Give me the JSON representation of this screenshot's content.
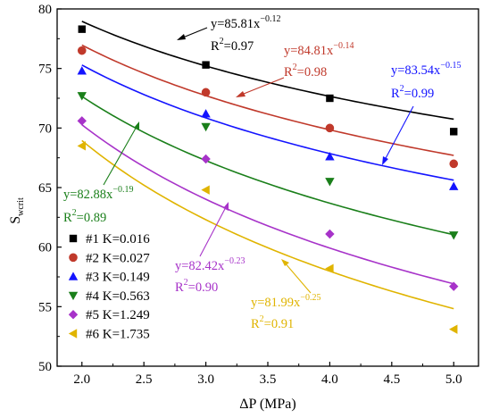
{
  "chart_data": {
    "type": "scatter",
    "xlabel": "ΔP (MPa)",
    "ylabel_main": "S",
    "ylabel_sub": "wcrit",
    "xlim": [
      1.8,
      5.2
    ],
    "ylim": [
      50,
      80
    ],
    "xticks": [
      2.0,
      2.5,
      3.0,
      3.5,
      4.0,
      4.5,
      5.0
    ],
    "xtick_labels": [
      "2.0",
      "2.5",
      "3.0",
      "3.5",
      "4.0",
      "4.5",
      "5.0"
    ],
    "yticks": [
      50,
      55,
      60,
      65,
      70,
      75,
      80
    ],
    "ytick_labels": [
      "50",
      "55",
      "60",
      "65",
      "70",
      "75",
      "80"
    ],
    "grid": false,
    "legend_position": "bottom-left",
    "series": [
      {
        "name": "#1 K=0.016",
        "marker": "square",
        "color": "#000000",
        "x": [
          2,
          3,
          4,
          5
        ],
        "y": [
          78.3,
          75.3,
          72.5,
          69.7
        ],
        "fit": {
          "a": 85.81,
          "b": -0.12
        },
        "eq_base": "y=85.81x",
        "eq_exp": "−0.12",
        "r2_base": "R",
        "r2_exp": "2",
        "r2_val": "=0.97"
      },
      {
        "name": "#2 K=0.027",
        "marker": "circle",
        "color": "#c0392b",
        "x": [
          2,
          3,
          4,
          5
        ],
        "y": [
          76.5,
          73.0,
          70.0,
          67.0
        ],
        "fit": {
          "a": 84.81,
          "b": -0.14
        },
        "eq_base": "y=84.81x",
        "eq_exp": "−0.14",
        "r2_base": "R",
        "r2_exp": "2",
        "r2_val": "=0.98"
      },
      {
        "name": "#3 K=0.149",
        "marker": "triangle-up",
        "color": "#1414ff",
        "x": [
          2,
          3,
          4,
          5
        ],
        "y": [
          74.8,
          71.2,
          67.6,
          65.1
        ],
        "fit": {
          "a": 83.54,
          "b": -0.15
        },
        "eq_base": "y=83.54x",
        "eq_exp": "−0.15",
        "r2_base": "R",
        "r2_exp": "2",
        "r2_val": "=0.99"
      },
      {
        "name": "#4 K=0.563",
        "marker": "triangle-down",
        "color": "#1a7f1a",
        "x": [
          2,
          3,
          4,
          5
        ],
        "y": [
          72.7,
          70.1,
          65.5,
          61.0
        ],
        "fit": {
          "a": 82.88,
          "b": -0.19
        },
        "eq_base": "y=82.88x",
        "eq_exp": "−0.19",
        "r2_base": "R",
        "r2_exp": "2",
        "r2_val": "=0.89"
      },
      {
        "name": "#5 K=1.249",
        "marker": "diamond",
        "color": "#a733c9",
        "x": [
          2,
          3,
          4,
          5
        ],
        "y": [
          70.6,
          67.4,
          61.1,
          56.7
        ],
        "fit": {
          "a": 82.42,
          "b": -0.23
        },
        "eq_base": "y=82.42x",
        "eq_exp": "−0.23",
        "r2_base": "R",
        "r2_exp": "2",
        "r2_val": "=0.90"
      },
      {
        "name": "#6 K=1.735",
        "marker": "triangle-left",
        "color": "#e0b400",
        "x": [
          2,
          3,
          4,
          5
        ],
        "y": [
          68.5,
          64.8,
          58.2,
          53.1
        ],
        "fit": {
          "a": 81.99,
          "b": -0.25
        },
        "eq_base": "y=81.99x",
        "eq_exp": "−0.25",
        "r2_base": "R",
        "r2_exp": "2",
        "r2_val": "=0.91"
      }
    ]
  }
}
